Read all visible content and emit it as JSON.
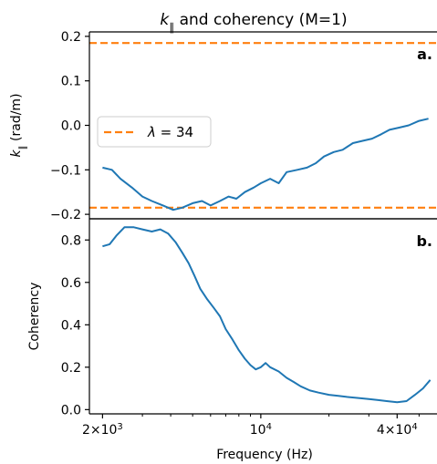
{
  "title": "k∥ and coherency (M=1)",
  "xlabel": "Frequency (Hz)",
  "colors": {
    "line": "#1f77b4",
    "dashed": "#ff7f0e",
    "axes": "#000000"
  },
  "xticks": [
    {
      "value": 2000,
      "base": "2×10",
      "exp": "3"
    },
    {
      "value": 10000,
      "base": "10",
      "exp": "4"
    },
    {
      "value": 40000,
      "base": "4×10",
      "exp": "4"
    }
  ],
  "chart_data": [
    {
      "type": "line",
      "panel_label": "a.",
      "ylabel": "k∥ (rad/m)",
      "xscale": "log",
      "xlim": [
        1750,
        60000
      ],
      "ylim": [
        -0.21,
        0.21
      ],
      "yticks": [
        -0.2,
        -0.1,
        0.0,
        0.1,
        0.2
      ],
      "ytick_labels": [
        "−0.2",
        "−0.1",
        "0.0",
        "0.1",
        "0.2"
      ],
      "hlines": [
        0.185,
        -0.185
      ],
      "legend": {
        "label": "λ = 34",
        "placement": "center-left"
      },
      "series": [
        {
          "x": [
            2000,
            2200,
            2400,
            2700,
            3000,
            3300,
            3700,
            4100,
            4500,
            5000,
            5500,
            6000,
            6600,
            7200,
            7800,
            8500,
            9300,
            10000,
            11000,
            12000,
            13000,
            14500,
            16000,
            17500,
            19000,
            21000,
            23000,
            25500,
            28000,
            31000,
            34000,
            37000,
            41000,
            45000,
            50000,
            55000
          ],
          "y": [
            -0.095,
            -0.1,
            -0.12,
            -0.14,
            -0.16,
            -0.17,
            -0.18,
            -0.19,
            -0.185,
            -0.175,
            -0.17,
            -0.18,
            -0.17,
            -0.16,
            -0.165,
            -0.15,
            -0.14,
            -0.13,
            -0.12,
            -0.13,
            -0.105,
            -0.1,
            -0.095,
            -0.085,
            -0.07,
            -0.06,
            -0.055,
            -0.04,
            -0.035,
            -0.03,
            -0.02,
            -0.01,
            -0.005,
            0.0,
            0.01,
            0.015
          ]
        }
      ]
    },
    {
      "type": "line",
      "panel_label": "b.",
      "ylabel": "Coherency",
      "xscale": "log",
      "xlim": [
        1750,
        60000
      ],
      "ylim": [
        -0.02,
        0.9
      ],
      "yticks": [
        0.0,
        0.2,
        0.4,
        0.6,
        0.8
      ],
      "ytick_labels": [
        "0.0",
        "0.2",
        "0.4",
        "0.6",
        "0.8"
      ],
      "series": [
        {
          "x": [
            2000,
            2150,
            2300,
            2500,
            2750,
            3000,
            3300,
            3600,
            3900,
            4200,
            4500,
            4800,
            5100,
            5400,
            5800,
            6200,
            6600,
            7000,
            7500,
            8000,
            8500,
            9000,
            9500,
            10000,
            10500,
            11000,
            12000,
            13000,
            14000,
            15000,
            16500,
            18000,
            20000,
            22000,
            24000,
            27000,
            30000,
            33000,
            36000,
            40000,
            44000,
            48000,
            52000,
            56000
          ],
          "y": [
            0.77,
            0.78,
            0.82,
            0.86,
            0.86,
            0.85,
            0.84,
            0.85,
            0.83,
            0.79,
            0.74,
            0.69,
            0.63,
            0.57,
            0.52,
            0.48,
            0.44,
            0.38,
            0.33,
            0.28,
            0.24,
            0.21,
            0.19,
            0.2,
            0.22,
            0.2,
            0.18,
            0.15,
            0.13,
            0.11,
            0.09,
            0.08,
            0.07,
            0.065,
            0.06,
            0.055,
            0.05,
            0.045,
            0.04,
            0.035,
            0.04,
            0.07,
            0.1,
            0.14
          ]
        }
      ]
    }
  ]
}
